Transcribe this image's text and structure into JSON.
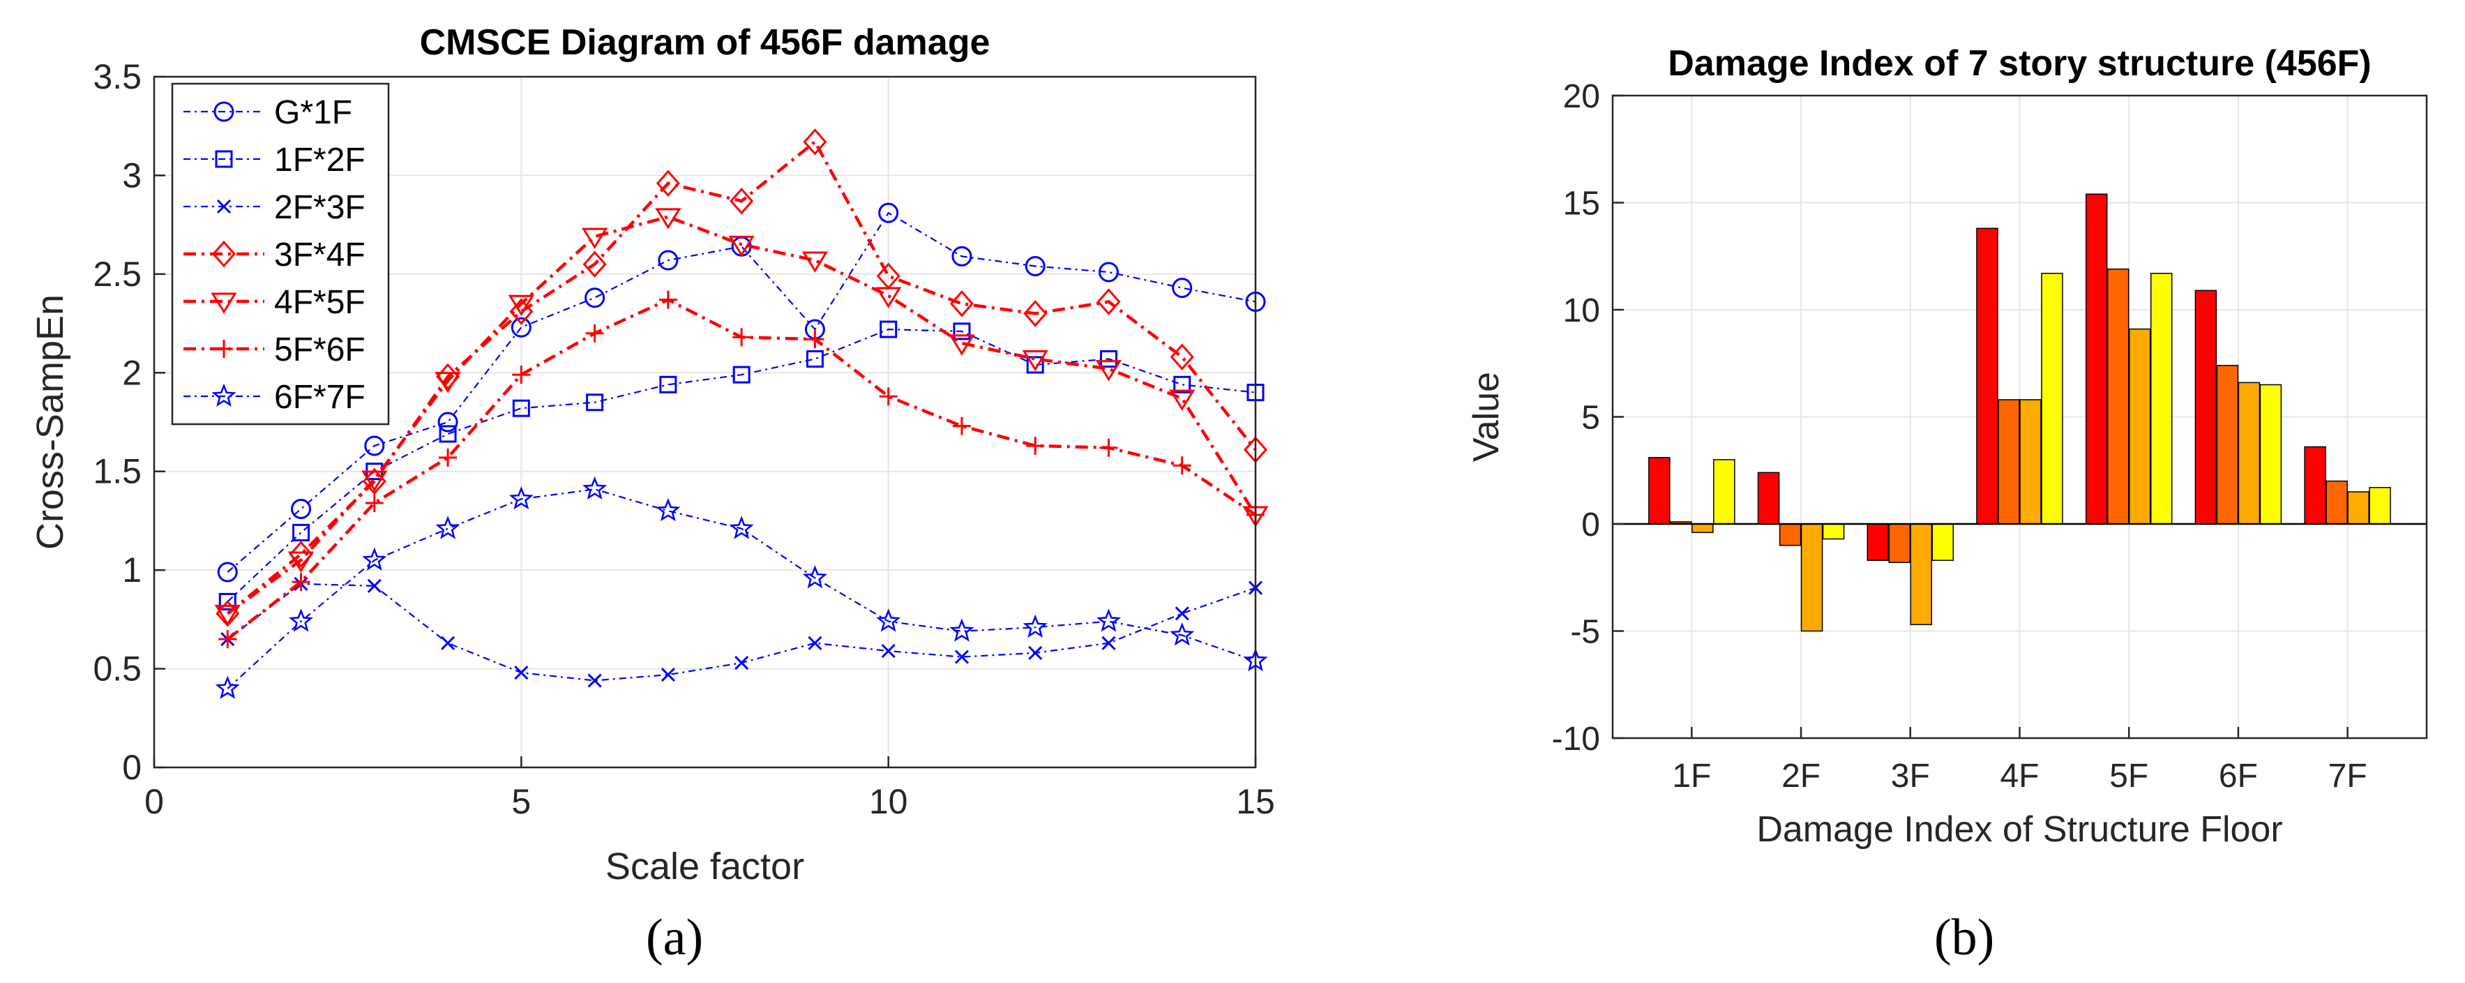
{
  "colors": {
    "blue": "#0000ff",
    "red": "#ff0000",
    "bar_series": [
      "#ff0000",
      "#ff6600",
      "#ffaa00",
      "#ffff00"
    ],
    "axis": "#262626",
    "grid": "#e6e6e6"
  },
  "panels": [
    {
      "label": "(a)"
    },
    {
      "label": "(b)"
    }
  ],
  "chart_data": [
    {
      "type": "line",
      "title": "CMSCE Diagram of 456F damage",
      "xlabel": "Scale factor",
      "ylabel": "Cross-SampEn",
      "xlim": [
        0,
        15
      ],
      "ylim": [
        0,
        3.5
      ],
      "xticks": [
        0,
        5,
        10,
        15
      ],
      "yticks": [
        0,
        0.5,
        1,
        1.5,
        2,
        2.5,
        3,
        3.5
      ],
      "ytick_labels": [
        "0",
        "0.5",
        "1",
        "1.5",
        "2",
        "2.5",
        "3",
        "3.5"
      ],
      "grid": true,
      "legend_position": "top-left",
      "x": [
        1,
        2,
        3,
        4,
        5,
        6,
        7,
        8,
        9,
        10,
        11,
        12,
        13,
        14,
        15
      ],
      "series": [
        {
          "name": "G*1F",
          "color": "#0000ff",
          "marker": "circle",
          "bold": false,
          "values": [
            0.99,
            1.31,
            1.63,
            1.75,
            2.23,
            2.38,
            2.57,
            2.64,
            2.22,
            2.81,
            2.59,
            2.54,
            2.51,
            2.43,
            2.36
          ]
        },
        {
          "name": "1F*2F",
          "color": "#0000ff",
          "marker": "square",
          "bold": false,
          "values": [
            0.84,
            1.19,
            1.5,
            1.69,
            1.82,
            1.85,
            1.94,
            1.99,
            2.07,
            2.22,
            2.21,
            2.04,
            2.07,
            1.94,
            1.9
          ]
        },
        {
          "name": "2F*3F",
          "color": "#0000ff",
          "marker": "x",
          "bold": false,
          "values": [
            0.65,
            0.93,
            0.92,
            0.63,
            0.48,
            0.44,
            0.47,
            0.53,
            0.63,
            0.59,
            0.56,
            0.58,
            0.63,
            0.78,
            0.91
          ]
        },
        {
          "name": "3F*4F",
          "color": "#ff0000",
          "marker": "diamond",
          "bold": true,
          "values": [
            0.78,
            1.08,
            1.45,
            1.98,
            2.31,
            2.55,
            2.96,
            2.87,
            3.17,
            2.49,
            2.35,
            2.3,
            2.36,
            2.08,
            1.61
          ]
        },
        {
          "name": "4F*5F",
          "color": "#ff0000",
          "marker": "triangle-down",
          "bold": true,
          "values": [
            0.78,
            1.05,
            1.46,
            1.96,
            2.35,
            2.69,
            2.79,
            2.65,
            2.57,
            2.39,
            2.15,
            2.07,
            2.02,
            1.87,
            1.28
          ]
        },
        {
          "name": "5F*6F",
          "color": "#ff0000",
          "marker": "plus",
          "bold": true,
          "values": [
            0.65,
            0.94,
            1.34,
            1.57,
            1.99,
            2.2,
            2.37,
            2.18,
            2.17,
            1.88,
            1.73,
            1.63,
            1.62,
            1.53,
            1.28
          ]
        },
        {
          "name": "6F*7F",
          "color": "#0000ff",
          "marker": "star",
          "bold": false,
          "values": [
            0.4,
            0.74,
            1.05,
            1.21,
            1.36,
            1.41,
            1.3,
            1.21,
            0.96,
            0.74,
            0.69,
            0.71,
            0.74,
            0.67,
            0.54
          ]
        }
      ]
    },
    {
      "type": "bar",
      "title": "Damage Index of 7 story structure (456F)",
      "xlabel": "Damage Index of Structure Floor",
      "ylabel": "Value",
      "ylim": [
        -10,
        20
      ],
      "yticks": [
        -10,
        -5,
        0,
        5,
        10,
        15,
        20
      ],
      "ytick_labels": [
        "-10",
        "-5",
        "0",
        "5",
        "10",
        "15",
        "20"
      ],
      "grid": true,
      "categories": [
        "1F",
        "2F",
        "3F",
        "4F",
        "5F",
        "6F",
        "7F"
      ],
      "series": [
        {
          "color": "#ff0000",
          "values": [
            3.1,
            2.4,
            -1.7,
            13.8,
            15.4,
            10.9,
            3.6
          ]
        },
        {
          "color": "#ff6600",
          "values": [
            0.1,
            -1.0,
            -1.8,
            5.8,
            11.9,
            7.4,
            2.0
          ]
        },
        {
          "color": "#ffaa00",
          "values": [
            -0.4,
            -5.0,
            -4.7,
            5.8,
            9.1,
            6.6,
            1.5
          ]
        },
        {
          "color": "#ffff00",
          "values": [
            3.0,
            -0.7,
            -1.7,
            11.7,
            11.7,
            6.5,
            1.7
          ]
        }
      ]
    }
  ]
}
